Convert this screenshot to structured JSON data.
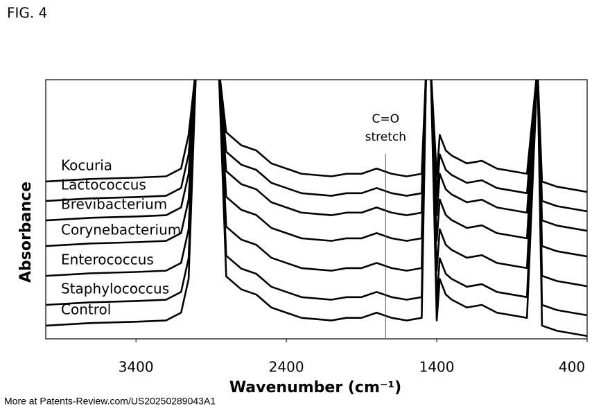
{
  "figure_label": "FIG. 4",
  "footer": "More at Patents-Review.com/US20250289043A1",
  "chart_data": {
    "type": "line",
    "xlabel": "Wavenumber (cm⁻¹)",
    "ylabel": "Absorbance",
    "xlim": [
      4000,
      400
    ],
    "xticks": [
      3400,
      2400,
      1400,
      400
    ],
    "ylim": [
      0,
      10
    ],
    "annotation": {
      "lines": [
        "C=O",
        "stretch"
      ],
      "x": 1740
    },
    "x": [
      4000,
      3700,
      3400,
      3200,
      3100,
      3050,
      3000,
      2950,
      2850,
      2800,
      2700,
      2600,
      2500,
      2400,
      2300,
      2200,
      2100,
      2000,
      1900,
      1800,
      1700,
      1600,
      1500,
      1470,
      1440,
      1400,
      1380,
      1340,
      1300,
      1200,
      1100,
      1000,
      900,
      800,
      730,
      700,
      600,
      500,
      400
    ],
    "series": [
      {
        "name": "Kocuria",
        "color": "#000000",
        "values": [
          6.07,
          6.17,
          6.22,
          6.27,
          6.57,
          7.87,
          10.5,
          10.5,
          10.5,
          7.97,
          7.47,
          7.27,
          6.77,
          6.57,
          6.37,
          6.32,
          6.27,
          6.37,
          6.37,
          6.57,
          6.37,
          6.27,
          6.37,
          10.5,
          10.5,
          6.27,
          7.87,
          7.27,
          7.07,
          6.77,
          6.87,
          6.57,
          6.47,
          6.37,
          10.5,
          6.07,
          5.87,
          5.77,
          5.67
        ]
      },
      {
        "name": "Lactococcus",
        "color": "#000000",
        "values": [
          5.32,
          5.42,
          5.47,
          5.52,
          5.82,
          7.12,
          10.5,
          10.5,
          10.5,
          7.22,
          6.72,
          6.52,
          6.02,
          5.82,
          5.62,
          5.57,
          5.52,
          5.62,
          5.62,
          5.82,
          5.62,
          5.52,
          5.62,
          10.5,
          10.5,
          5.52,
          7.12,
          6.52,
          6.32,
          6.02,
          6.12,
          5.82,
          5.72,
          5.62,
          10.5,
          5.32,
          5.12,
          5.02,
          4.92
        ]
      },
      {
        "name": "Brevibacterium",
        "color": "#000000",
        "values": [
          4.57,
          4.67,
          4.72,
          4.77,
          5.07,
          6.37,
          10.5,
          10.5,
          10.5,
          6.47,
          5.97,
          5.77,
          5.27,
          5.07,
          4.87,
          4.82,
          4.77,
          4.87,
          4.87,
          5.07,
          4.87,
          4.77,
          4.87,
          10.5,
          10.5,
          4.77,
          6.37,
          5.77,
          5.57,
          5.27,
          5.37,
          5.07,
          4.97,
          4.87,
          10.5,
          4.57,
          4.37,
          4.27,
          4.17
        ]
      },
      {
        "name": "Corynebacterium",
        "color": "#000000",
        "values": [
          3.58,
          3.68,
          3.73,
          3.78,
          4.08,
          5.38,
          10.5,
          10.5,
          10.5,
          5.48,
          4.98,
          4.78,
          4.28,
          4.08,
          3.88,
          3.83,
          3.78,
          3.88,
          3.88,
          4.08,
          3.88,
          3.78,
          3.88,
          10.5,
          10.5,
          3.78,
          5.38,
          4.78,
          4.58,
          4.28,
          4.38,
          4.08,
          3.98,
          3.88,
          10.5,
          3.58,
          3.38,
          3.28,
          3.18
        ]
      },
      {
        "name": "Enterococcus",
        "color": "#000000",
        "values": [
          2.43,
          2.53,
          2.58,
          2.63,
          2.93,
          4.23,
          10.5,
          10.5,
          10.5,
          4.33,
          3.83,
          3.63,
          3.13,
          2.93,
          2.73,
          2.68,
          2.63,
          2.73,
          2.73,
          2.93,
          2.73,
          2.63,
          2.73,
          10.5,
          10.5,
          2.63,
          4.23,
          3.63,
          3.43,
          3.13,
          3.23,
          2.93,
          2.83,
          2.73,
          10.5,
          2.43,
          2.23,
          2.13,
          2.03
        ]
      },
      {
        "name": "Staphylococcus",
        "color": "#000000",
        "values": [
          1.31,
          1.41,
          1.46,
          1.51,
          1.81,
          3.11,
          10.5,
          10.5,
          10.5,
          3.21,
          2.71,
          2.51,
          2.01,
          1.81,
          1.61,
          1.56,
          1.51,
          1.61,
          1.61,
          1.81,
          1.61,
          1.51,
          1.61,
          10.5,
          10.5,
          1.51,
          3.11,
          2.51,
          2.31,
          2.01,
          2.11,
          1.81,
          1.71,
          1.61,
          10.5,
          1.31,
          1.11,
          1.01,
          0.91
        ]
      },
      {
        "name": "Control",
        "color": "#000000",
        "values": [
          0.51,
          0.61,
          0.66,
          0.71,
          1.01,
          2.31,
          10.5,
          10.5,
          10.5,
          2.41,
          1.91,
          1.71,
          1.21,
          1.01,
          0.81,
          0.76,
          0.71,
          0.81,
          0.81,
          1.01,
          0.81,
          0.71,
          0.81,
          10.5,
          10.5,
          0.71,
          2.31,
          1.71,
          1.51,
          1.21,
          1.31,
          1.01,
          0.91,
          0.81,
          10.5,
          0.51,
          0.31,
          0.21,
          0.11
        ]
      }
    ]
  }
}
